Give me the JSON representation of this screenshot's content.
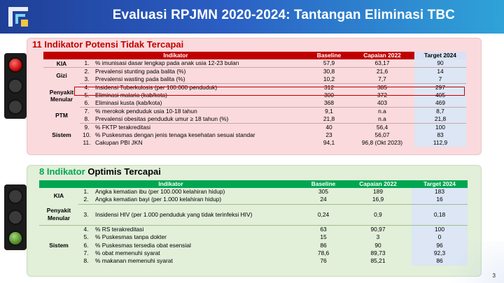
{
  "header": {
    "title": "Evaluasi RPJMN 2020-2024: Tantangan Eliminasi TBC"
  },
  "section1": {
    "title": "11 Indikator Potensi Tidak Tercapai",
    "columns": [
      "Indikator",
      "Baseline",
      "Capaian 2022",
      "Target 2024"
    ],
    "rows": [
      {
        "group": "KIA",
        "no": "1.",
        "indicator": "% imunisasi dasar lengkap pada anak usia 12-23 bulan",
        "baseline": "57,9",
        "capaian": "63,17",
        "target": "90"
      },
      {
        "group": "Gizi",
        "no": "2.",
        "indicator": "Prevalensi stunting pada balita (%)",
        "baseline": "30,8",
        "capaian": "21,6",
        "target": "14"
      },
      {
        "group": "",
        "no": "3.",
        "indicator": "Prevalensi wasting pada balita (%)",
        "baseline": "10,2",
        "capaian": "7,7",
        "target": "7"
      },
      {
        "group": "Penyakit Menular",
        "no": "4.",
        "indicator": "Insidensi Tuberkulosis (per 100.000 penduduk)",
        "baseline": "312",
        "capaian": "385",
        "target": "297"
      },
      {
        "group": "",
        "no": "5.",
        "indicator": "Eliminasi malaria (kab/kota)",
        "baseline": "300",
        "capaian": "372",
        "target": "405"
      },
      {
        "group": "",
        "no": "6.",
        "indicator": "Eliminasi kusta (kab/kota)",
        "baseline": "368",
        "capaian": "403",
        "target": "469"
      },
      {
        "group": "PTM",
        "no": "7.",
        "indicator": "% merokok penduduk usia 10-18 tahun",
        "baseline": "9,1",
        "capaian": "n.a",
        "target": "8,7"
      },
      {
        "group": "",
        "no": "8.",
        "indicator": "Prevalensi obesitas penduduk umur ≥ 18 tahun (%)",
        "baseline": "21,8",
        "capaian": "n.a",
        "target": "21,8"
      },
      {
        "group": "Sistem",
        "no": "9.",
        "indicator": "% FKTP terakreditasi",
        "baseline": "40",
        "capaian": "56,4",
        "target": "100"
      },
      {
        "group": "",
        "no": "10.",
        "indicator": "% Puskesmas dengan jenis tenaga kesehatan sesuai standar",
        "baseline": "23",
        "capaian": "56,07",
        "target": "83"
      },
      {
        "group": "",
        "no": "11.",
        "indicator": "Cakupan PBI JKN",
        "baseline": "94,1",
        "capaian": "96,8 (Okt 2023)",
        "target": "112,9"
      }
    ]
  },
  "section2": {
    "title": "8 Indikator Optimis Tercapai",
    "columns": [
      "Indikator",
      "Baseline",
      "Capaian 2022",
      "Target 2024"
    ],
    "rows": [
      {
        "group": "KIA",
        "no": "1.",
        "indicator": "Angka kematian ibu (per 100.000 kelahiran hidup)",
        "baseline": "305",
        "capaian": "189",
        "target": "183"
      },
      {
        "group": "",
        "no": "2.",
        "indicator": "Angka kematian bayi (per 1.000 kelahiran hidup)",
        "baseline": "24",
        "capaian": "16,9",
        "target": "16"
      },
      {
        "group": "Penyakit Menular",
        "no": "3.",
        "indicator": "Insidensi HIV (per 1.000 penduduk yang tidak terinfeksi HIV)",
        "baseline": "0,24",
        "capaian": "0,9",
        "target": "0,18"
      },
      {
        "group": "Sistem",
        "no": "4.",
        "indicator": "% RS terakreditasi",
        "baseline": "63",
        "capaian": "90,97",
        "target": "100"
      },
      {
        "group": "",
        "no": "5.",
        "indicator": "% Puskesmas tanpa dokter",
        "baseline": "15",
        "capaian": "3",
        "target": "0"
      },
      {
        "group": "",
        "no": "6.",
        "indicator": "% Puskesmas tersedia obat esensial",
        "baseline": "86",
        "capaian": "90",
        "target": "96"
      },
      {
        "group": "",
        "no": "7.",
        "indicator": "% obat memenuhi syarat",
        "baseline": "78,6",
        "capaian": "89,73",
        "target": "92,3"
      },
      {
        "group": "",
        "no": "8.",
        "indicator": "% makanan memenuhi syarat",
        "baseline": "76",
        "capaian": "85,21",
        "target": "86"
      }
    ]
  },
  "page_number": "3",
  "colors": {
    "header_start": "#1f3f97",
    "header_end": "#2fa3d8",
    "red_panel": "#fadadd",
    "green_panel": "#e2efd9",
    "red_head": "#c00000",
    "green_head": "#00a651"
  }
}
